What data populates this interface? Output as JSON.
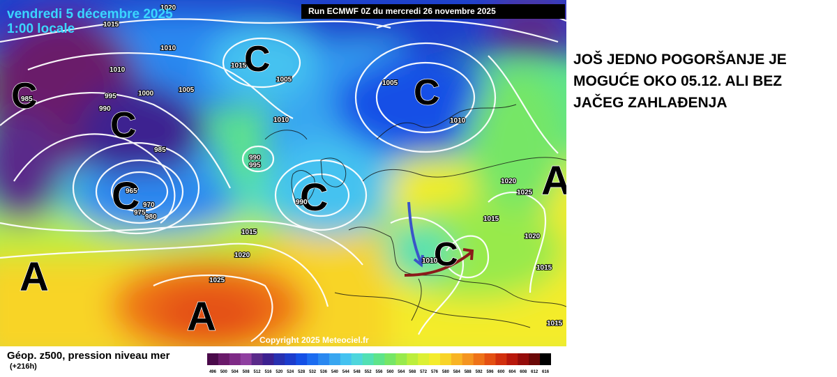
{
  "map": {
    "date_line1": "vendredi 5 décembre 2025",
    "date_line2": "1:00 locale",
    "run_banner": "Run ECMWF 0Z du mercredi 26 novembre 2025",
    "copyright": "Copyright 2025 Meteociel.fr",
    "pressure_centers": [
      {
        "label": "C",
        "kind": "low"
      },
      {
        "label": "C",
        "kind": "low"
      },
      {
        "label": "C",
        "kind": "low"
      },
      {
        "label": "C",
        "kind": "low"
      },
      {
        "label": "C",
        "kind": "low"
      },
      {
        "label": "C",
        "kind": "low"
      },
      {
        "label": "C",
        "kind": "low"
      },
      {
        "label": "A",
        "kind": "high"
      },
      {
        "label": "A",
        "kind": "high"
      },
      {
        "label": "A",
        "kind": "high"
      }
    ],
    "isobar_labels": [
      "1020",
      "1015",
      "1010",
      "1010",
      "1005",
      "995",
      "990",
      "1000",
      "985",
      "985",
      "965",
      "970",
      "975",
      "980",
      "990",
      "995",
      "1015",
      "1010",
      "1005",
      "1005",
      "1010",
      "990",
      "1020",
      "1025",
      "1015",
      "1020",
      "1015",
      "1010",
      "1015",
      "1020",
      "1025",
      "1015"
    ],
    "arrow_colors": {
      "blue": "#3a55c8",
      "red": "#8b1a1a"
    }
  },
  "annotation": {
    "lines": [
      "JOŠ JEDNO POGORŠANJE JE",
      "MOGUĆE OKO 05.12. ALI BEZ",
      "JAČEG ZAHLAĐENJA"
    ]
  },
  "legend": {
    "title": "Géop. z500, pression niveau mer",
    "subtitle": "(+216h)",
    "ticks": [
      "496",
      "500",
      "504",
      "508",
      "512",
      "516",
      "520",
      "524",
      "528",
      "532",
      "536",
      "540",
      "544",
      "548",
      "552",
      "556",
      "560",
      "564",
      "568",
      "572",
      "576",
      "580",
      "584",
      "588",
      "592",
      "596",
      "600",
      "604",
      "608",
      "612",
      "616"
    ],
    "colors": [
      "#4a0a4a",
      "#6a1a6a",
      "#7e2a86",
      "#8f3fa0",
      "#5a2a8a",
      "#3c2090",
      "#2830b0",
      "#1c3ccc",
      "#1450e6",
      "#1c6cf0",
      "#2a88f0",
      "#38a6f0",
      "#44c2f0",
      "#4ed6dc",
      "#52e0b4",
      "#5ee48a",
      "#76e666",
      "#98ea4c",
      "#bcee3c",
      "#dcf034",
      "#f4ec2c",
      "#f8d428",
      "#f8b424",
      "#f49420",
      "#ee7218",
      "#e45012",
      "#d2300e",
      "#b8180c",
      "#940c0a",
      "#6a0806",
      "#000000"
    ]
  }
}
